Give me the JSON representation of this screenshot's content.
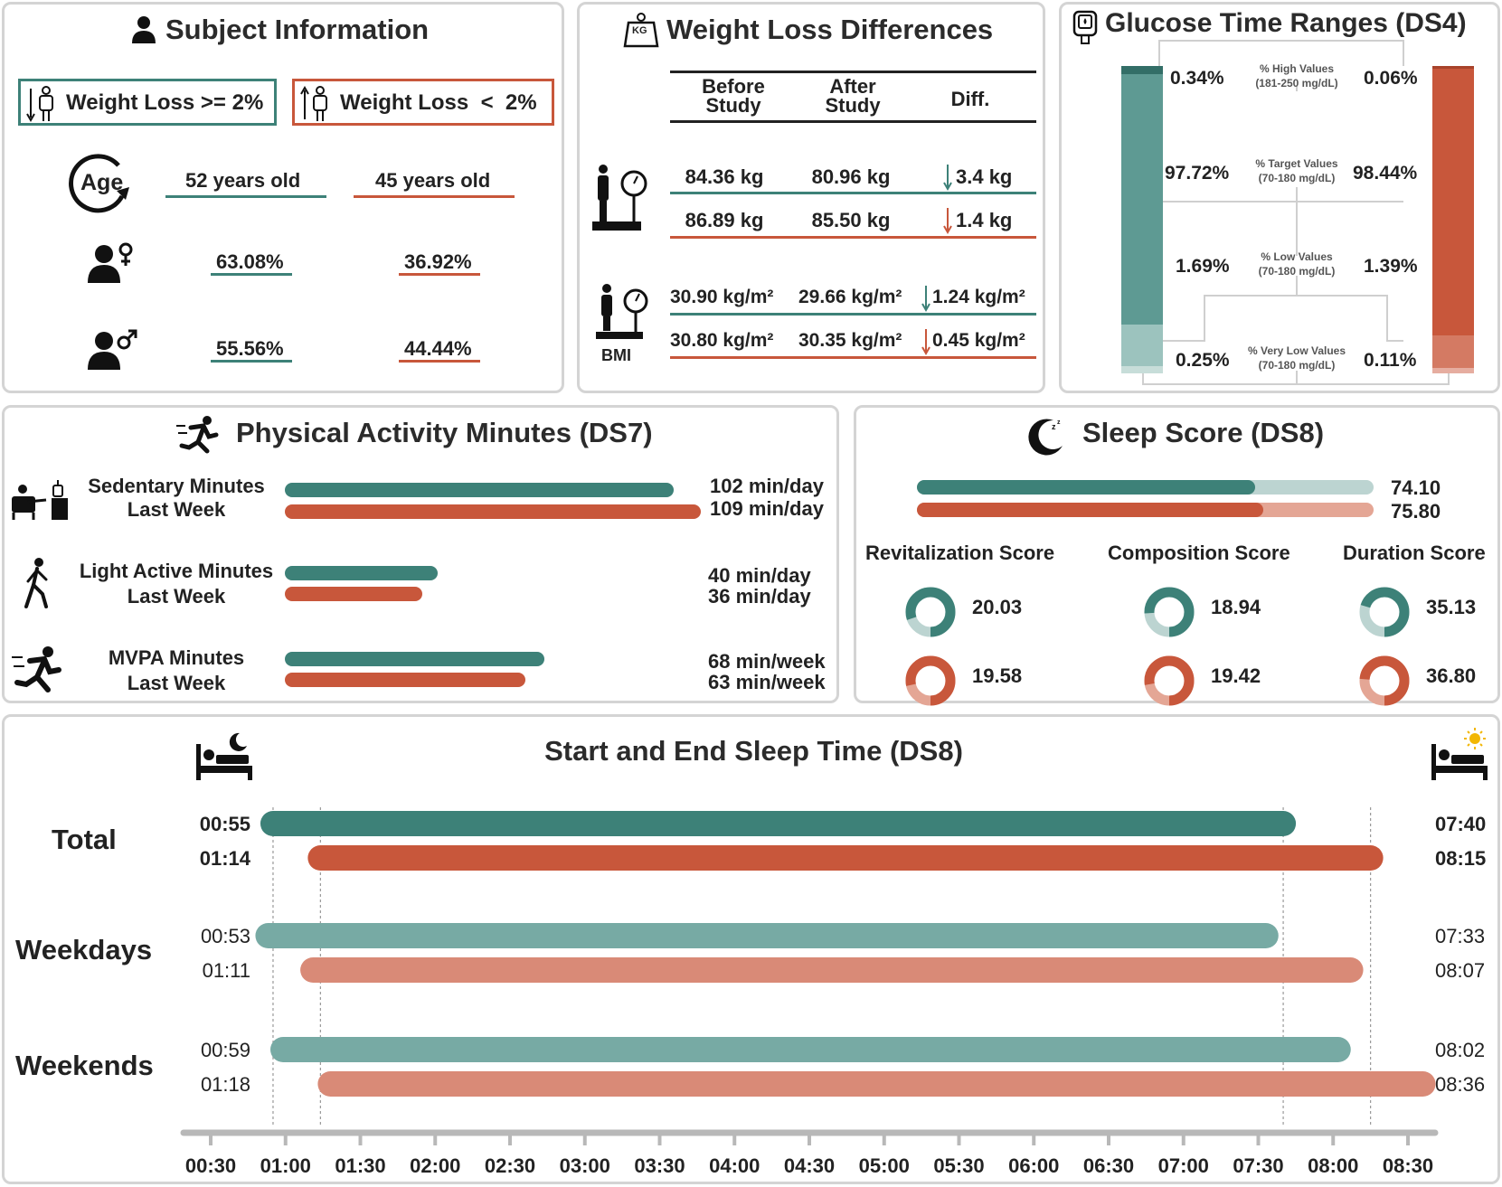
{
  "colors": {
    "teal": "#3d8178",
    "red": "#c8573b",
    "teal_light": "#77aaa4",
    "red_light": "#d98a77"
  },
  "subject": {
    "title": "Subject Information",
    "legend_teal": "Weight Loss >= 2%",
    "legend_red": "Weight Loss  <  2%",
    "age_label": "Age",
    "age_teal": "52 years old",
    "age_red": "45 years old",
    "female_teal": "63.08%",
    "female_red": "36.92%",
    "male_teal": "55.56%",
    "male_red": "44.44%"
  },
  "weight": {
    "title": "Weight Loss Differences",
    "kg_label": "KG",
    "headers": [
      "Before\nStudy",
      "After\nStudy",
      "Diff."
    ],
    "bmi_label": "BMI",
    "rows": [
      {
        "before": "84.36 kg",
        "after": "80.96 kg",
        "diff": "3.4 kg",
        "group": "teal"
      },
      {
        "before": "86.89 kg",
        "after": "85.50 kg",
        "diff": "1.4 kg",
        "group": "red"
      },
      {
        "before": "30.90 kg/m²",
        "after": "29.66 kg/m²",
        "diff": "1.24 kg/m²",
        "group": "teal"
      },
      {
        "before": "30.80 kg/m²",
        "after": "30.35 kg/m²",
        "diff": "0.45 kg/m²",
        "group": "red"
      }
    ]
  },
  "glucose": {
    "title": "Glucose Time Ranges (DS4)",
    "rows": [
      {
        "label": "% High Values",
        "range": "(181-250 mg/dL)",
        "teal": "0.34%",
        "red": "0.06%"
      },
      {
        "label": "% Target Values",
        "range": "(70-180 mg/dL)",
        "teal": "97.72%",
        "red": "98.44%"
      },
      {
        "label": "% Low Values",
        "range": "(70-180 mg/dL)",
        "teal": "1.69%",
        "red": "1.39%"
      },
      {
        "label": "% Very Low Values",
        "range": "(70-180 mg/dL)",
        "teal": "0.25%",
        "red": "0.11%"
      }
    ]
  },
  "activity": {
    "title": "Physical Activity Minutes (DS7)",
    "rows": [
      {
        "label1": "Sedentary Minutes",
        "label2": "Last Week",
        "teal_value": 102,
        "red_value": 109,
        "teal_text": "102 min/day",
        "red_text": "109 min/day"
      },
      {
        "label1": "Light Active Minutes",
        "label2": "Last Week",
        "teal_value": 40,
        "red_value": 36,
        "teal_text": "40 min/day",
        "red_text": "36 min/day"
      },
      {
        "label1": "MVPA Minutes",
        "label2": "Last Week",
        "teal_value": 68,
        "red_value": 63,
        "teal_text": "68 min/week",
        "red_text": "63 min/week"
      }
    ]
  },
  "sleep_score": {
    "title": "Sleep Score (DS8)",
    "teal_total": 74.1,
    "red_total": 75.8,
    "teal_total_text": "74.10",
    "red_total_text": "75.80",
    "components": [
      {
        "name": "Revitalization Score",
        "teal": 20.03,
        "red": 19.58,
        "teal_text": "20.03",
        "red_text": "19.58",
        "max": 25
      },
      {
        "name": "Composition Score",
        "teal": 18.94,
        "red": 19.42,
        "teal_text": "18.94",
        "red_text": "19.42",
        "max": 25
      },
      {
        "name": "Duration Score",
        "teal": 35.13,
        "red": 36.8,
        "teal_text": "35.13",
        "red_text": "36.80",
        "max": 50
      }
    ]
  },
  "sleep_time": {
    "title": "Start and End Sleep Time (DS8)",
    "rows": [
      {
        "group": "Total",
        "teal_start": "00:55",
        "teal_end": "07:40",
        "red_start": "01:14",
        "red_end": "08:15"
      },
      {
        "group": "Weekdays",
        "teal_start": "00:53",
        "teal_end": "07:33",
        "red_start": "01:11",
        "red_end": "08:07"
      },
      {
        "group": "Weekends",
        "teal_start": "00:59",
        "teal_end": "08:02",
        "red_start": "01:18",
        "red_end": "08:36"
      }
    ],
    "ticks": [
      "00:30",
      "01:00",
      "01:30",
      "02:00",
      "02:30",
      "03:00",
      "03:30",
      "04:00",
      "04:30",
      "05:00",
      "05:30",
      "06:00",
      "06:30",
      "07:00",
      "07:30",
      "08:00",
      "08:30"
    ]
  }
}
